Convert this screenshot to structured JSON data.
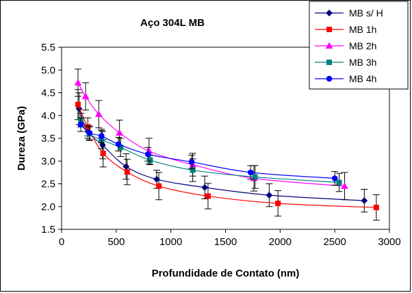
{
  "chart_data": {
    "type": "scatter",
    "title": "Aço 304L MB",
    "xlabel": "Profundidade de Contato (nm)",
    "ylabel": "Dureza (GPa)",
    "xlim": [
      0,
      3000
    ],
    "ylim": [
      1.5,
      5.5
    ],
    "x_ticks": [
      0,
      500,
      1000,
      1500,
      2000,
      2500,
      3000
    ],
    "y_ticks": [
      1.5,
      2.0,
      2.5,
      3.0,
      3.5,
      4.0,
      4.5,
      5.0,
      5.5
    ],
    "x_tick_labels": [
      "0",
      "500",
      "1000",
      "1500",
      "2000",
      "2500",
      "3000"
    ],
    "y_tick_labels": [
      "1.5",
      "2.0",
      "2.5",
      "3.0",
      "3.5",
      "4.0",
      "4.5",
      "5.0",
      "5.5"
    ],
    "grid": false,
    "legend_position": "top-right",
    "series": [
      {
        "name": "MB s/ H",
        "color": "#000080",
        "marker": "diamond",
        "points": [
          {
            "x": 160,
            "y": 4.15,
            "err": 0.35
          },
          {
            "x": 240,
            "y": 3.65,
            "err": 0.15
          },
          {
            "x": 375,
            "y": 3.35,
            "err": 0.3
          },
          {
            "x": 590,
            "y": 2.88,
            "err": 0.28
          },
          {
            "x": 870,
            "y": 2.6,
            "err": 0.2
          },
          {
            "x": 1310,
            "y": 2.42,
            "err": 0.25
          },
          {
            "x": 1900,
            "y": 2.25,
            "err": 0.25
          },
          {
            "x": 2770,
            "y": 2.13,
            "err": 0.25
          }
        ]
      },
      {
        "name": "MB 1h",
        "color": "#ff0000",
        "marker": "square",
        "points": [
          {
            "x": 150,
            "y": 4.24,
            "err": 0.33
          },
          {
            "x": 240,
            "y": 3.75,
            "err": 0.2
          },
          {
            "x": 380,
            "y": 3.17,
            "err": 0.3
          },
          {
            "x": 600,
            "y": 2.76,
            "err": 0.28
          },
          {
            "x": 890,
            "y": 2.45,
            "err": 0.3
          },
          {
            "x": 1340,
            "y": 2.23,
            "err": 0.28
          },
          {
            "x": 1980,
            "y": 2.07,
            "err": 0.28
          },
          {
            "x": 2880,
            "y": 1.98,
            "err": 0.28
          }
        ]
      },
      {
        "name": "MB 2h",
        "color": "#ff00ff",
        "marker": "triangle",
        "points": [
          {
            "x": 150,
            "y": 4.72,
            "err": 0.3
          },
          {
            "x": 220,
            "y": 4.42,
            "err": 0.3
          },
          {
            "x": 340,
            "y": 4.03,
            "err": 0.3
          },
          {
            "x": 530,
            "y": 3.62,
            "err": 0.28
          },
          {
            "x": 800,
            "y": 3.22,
            "err": 0.28
          },
          {
            "x": 1200,
            "y": 2.92,
            "err": 0.25
          },
          {
            "x": 1760,
            "y": 2.62,
            "err": 0.28
          },
          {
            "x": 2590,
            "y": 2.45,
            "err": 0.3
          }
        ]
      },
      {
        "name": "MB 3h",
        "color": "#008080",
        "marker": "square",
        "points": [
          {
            "x": 175,
            "y": 3.9,
            "err": 0.15
          },
          {
            "x": 255,
            "y": 3.6,
            "err": 0.15
          },
          {
            "x": 365,
            "y": 3.47,
            "err": 0.2
          },
          {
            "x": 540,
            "y": 3.3,
            "err": 0.2
          },
          {
            "x": 810,
            "y": 3.02,
            "err": 0.1
          },
          {
            "x": 1200,
            "y": 2.8,
            "err": 0.25
          },
          {
            "x": 1770,
            "y": 2.65,
            "err": 0.25
          },
          {
            "x": 2540,
            "y": 2.53,
            "err": 0.2
          }
        ]
      },
      {
        "name": "MB 4h",
        "color": "#0000ff",
        "marker": "circle",
        "points": [
          {
            "x": 175,
            "y": 3.8,
            "err": 0.15
          },
          {
            "x": 255,
            "y": 3.62,
            "err": 0.15
          },
          {
            "x": 365,
            "y": 3.55,
            "err": 0.15
          },
          {
            "x": 520,
            "y": 3.37,
            "err": 0.15
          },
          {
            "x": 790,
            "y": 3.15,
            "err": 0.15
          },
          {
            "x": 1190,
            "y": 2.98,
            "err": 0.15
          },
          {
            "x": 1730,
            "y": 2.75,
            "err": 0.15
          },
          {
            "x": 2500,
            "y": 2.62,
            "err": 0.15
          }
        ]
      }
    ]
  }
}
